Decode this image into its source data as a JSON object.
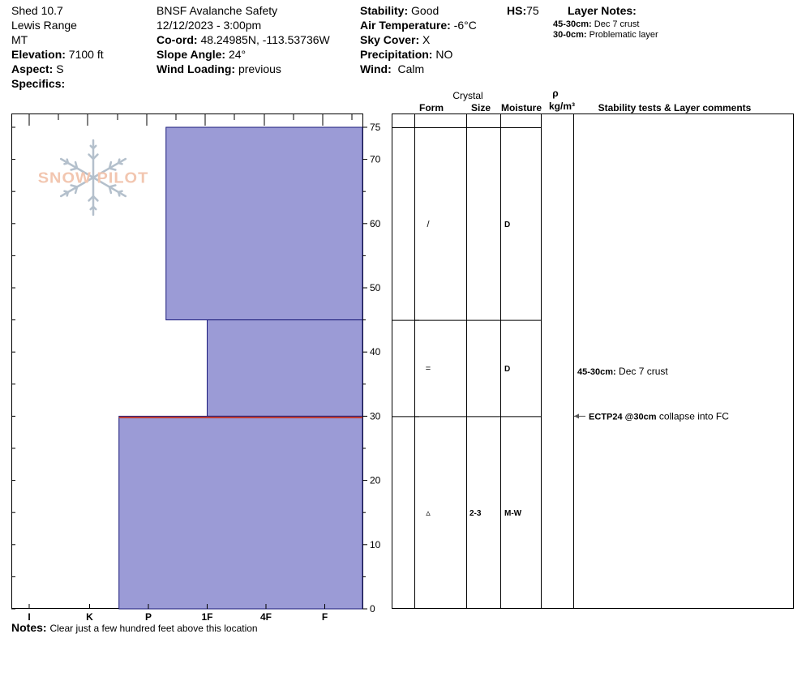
{
  "header": {
    "col1": {
      "station": "Shed 10.7",
      "range": "Lewis Range",
      "state": "MT",
      "elevation_label": "Elevation:",
      "elevation_value": "7100 ft",
      "aspect_label": "Aspect:",
      "aspect_value": "S",
      "specifics_label": "Specifics:"
    },
    "col2": {
      "observer": "BNSF Avalanche Safety",
      "datetime": "12/12/2023 - 3:00pm",
      "coord_label": "Co-ord:",
      "coord_value": "48.24985N, -113.53736W",
      "slope_label": "Slope Angle:",
      "slope_value": "24°",
      "wind_loading_label": "Wind Loading:",
      "wind_loading_value": "previous"
    },
    "col3": {
      "stability_label": "Stability:",
      "stability_value": "Good",
      "air_temp_label": "Air Temperature:",
      "air_temp_value": "-6°C",
      "sky_label": "Sky Cover:",
      "sky_value": "X",
      "precip_label": "Precipitation:",
      "precip_value": "NO",
      "wind_label": "Wind:",
      "wind_value": "Calm"
    },
    "hs_label": "HS:",
    "hs_value": "75",
    "layer_notes_title": "Layer Notes:",
    "layer_notes": [
      {
        "range": "45-30cm:",
        "text": "Dec 7 crust"
      },
      {
        "range": "30-0cm:",
        "text": "Problematic layer"
      }
    ]
  },
  "logo_text": "SNOW PILOT",
  "table_headers": {
    "crystal": "Crystal",
    "form": "Form",
    "size": "Size",
    "moisture": "Moisture",
    "rho": "ρ",
    "density_unit": "kg/m³",
    "comments": "Stability tests & Layer comments"
  },
  "colors": {
    "layer_fill": "#9b9bd6",
    "layer_stroke": "#1a1a7a",
    "weak_layer": "#c0392b",
    "logo_text": "#f2c6b0",
    "logo_flake": "#b4c0cc"
  },
  "chart_data": {
    "type": "snow-profile",
    "height_range_cm": [
      0,
      75
    ],
    "depth_ticks": [
      "0",
      "10",
      "20",
      "30",
      "40",
      "50",
      "60",
      "70",
      "75"
    ],
    "hardness_scale": [
      "I",
      "K",
      "P",
      "1F",
      "4F",
      "F"
    ],
    "layers": [
      {
        "top": 75,
        "bottom": 45,
        "hardness_index": 2.3,
        "form": "/",
        "size": "",
        "moisture": "D"
      },
      {
        "top": 45,
        "bottom": 30,
        "hardness_index": 3.0,
        "form": "=",
        "size": "",
        "moisture": "D"
      },
      {
        "top": 30,
        "bottom": 0,
        "hardness_index": 1.5,
        "form": "▵",
        "size": "2-3",
        "moisture": "M-W"
      }
    ],
    "weak_layer_height": 30,
    "layer_comments": [
      {
        "height": 37,
        "label": "45-30cm:",
        "text": "Dec 7 crust"
      }
    ],
    "tests": [
      {
        "height": 30,
        "code": "ECTP24 @30cm",
        "text": "collapse into FC"
      }
    ]
  },
  "notes": {
    "label": "Notes:",
    "text": "Clear just a few hundred feet above this location"
  }
}
